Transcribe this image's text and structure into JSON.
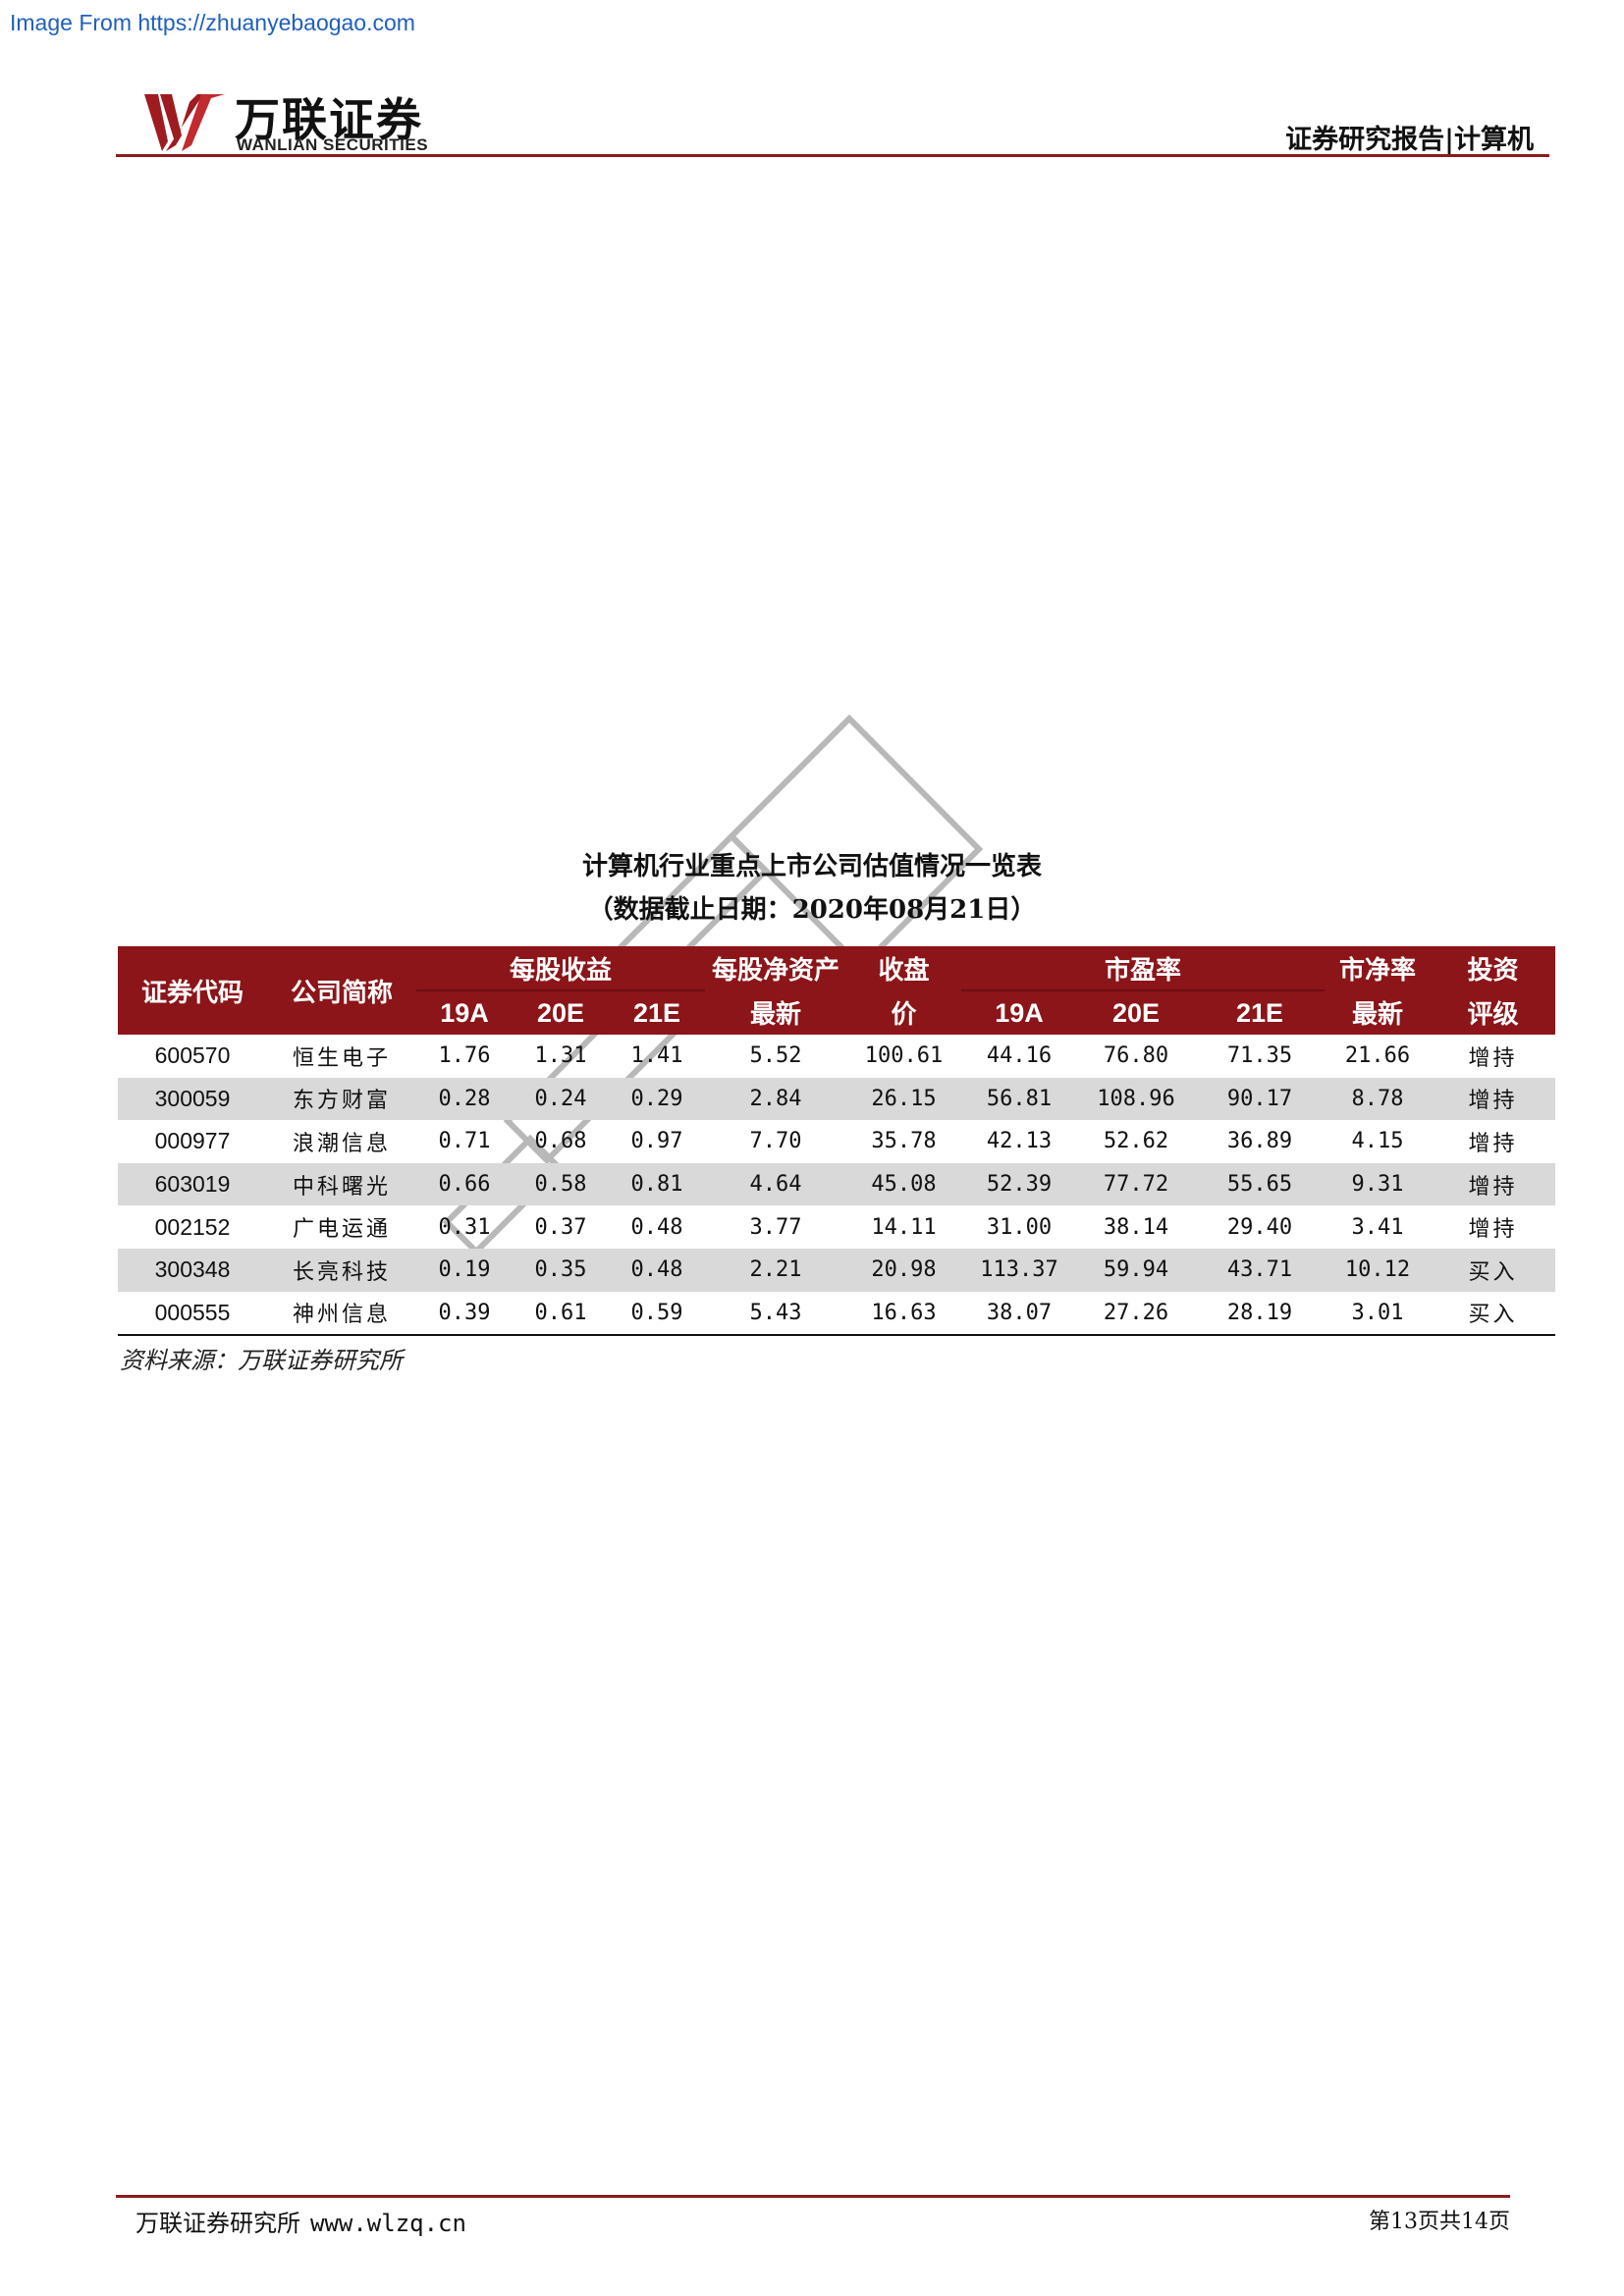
{
  "source_banner": "Image From https://zhuanyebaogao.com",
  "brand": {
    "cn": "万联证券",
    "en": "WANLIAN SECURITIES",
    "color": "#8e1a1c"
  },
  "header": {
    "category": "证券研究报告|计算机"
  },
  "table": {
    "title": "计算机行业重点上市公司估值情况一览表",
    "subtitle": "（数据截止日期：2020年08月21日）",
    "header_color": "#8b1519",
    "headers": {
      "code": "证券代码",
      "name": "公司简称",
      "eps": "每股收益",
      "bvps_top": "每股净资产",
      "bvps_bottom": "最新",
      "close_top": "收盘",
      "close_bottom": "价",
      "pe": "市盈率",
      "pb_top": "市净率",
      "pb_bottom": "最新",
      "rating_top": "投资",
      "rating_bottom": "评级",
      "y19": "19A",
      "y20": "20E",
      "y21": "21E"
    },
    "rows": [
      [
        "600570",
        "恒生电子",
        "1.76",
        "1.31",
        "1.41",
        "5.52",
        "100.61",
        "44.16",
        "76.80",
        "71.35",
        "21.66",
        "增持"
      ],
      [
        "300059",
        "东方财富",
        "0.28",
        "0.24",
        "0.29",
        "2.84",
        "26.15",
        "56.81",
        "108.96",
        "90.17",
        "8.78",
        "增持"
      ],
      [
        "000977",
        "浪潮信息",
        "0.71",
        "0.68",
        "0.97",
        "7.70",
        "35.78",
        "42.13",
        "52.62",
        "36.89",
        "4.15",
        "增持"
      ],
      [
        "603019",
        "中科曙光",
        "0.66",
        "0.58",
        "0.81",
        "4.64",
        "45.08",
        "52.39",
        "77.72",
        "55.65",
        "9.31",
        "增持"
      ],
      [
        "002152",
        "广电运通",
        "0.31",
        "0.37",
        "0.48",
        "3.77",
        "14.11",
        "31.00",
        "38.14",
        "29.40",
        "3.41",
        "增持"
      ],
      [
        "300348",
        "长亮科技",
        "0.19",
        "0.35",
        "0.48",
        "2.21",
        "20.98",
        "113.37",
        "59.94",
        "43.71",
        "10.12",
        "买入"
      ],
      [
        "000555",
        "神州信息",
        "0.39",
        "0.61",
        "0.59",
        "5.43",
        "16.63",
        "38.07",
        "27.26",
        "28.19",
        "3.01",
        "买入"
      ]
    ],
    "source_note": "资料来源：万联证券研究所"
  },
  "footer": {
    "org": "万联证券研究所",
    "url": "www.wlzq.cn",
    "page": "第13页共14页"
  }
}
